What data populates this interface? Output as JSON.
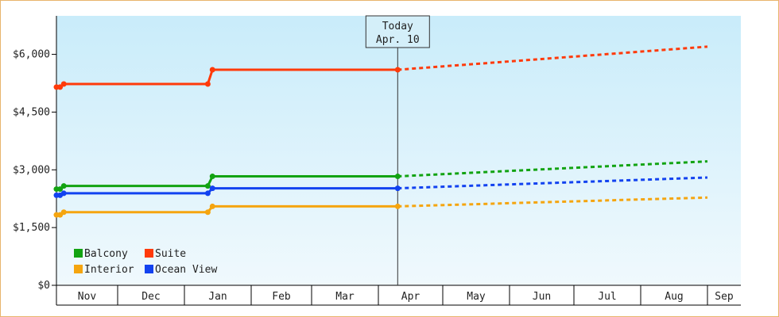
{
  "chart_data": {
    "type": "line",
    "x_unit": "month",
    "x_axis_labels": [
      "Nov",
      "Dec",
      "Jan",
      "Feb",
      "Mar",
      "Apr",
      "May",
      "Jun",
      "Jul",
      "Aug",
      "Sep"
    ],
    "y_ticks": [
      "$0",
      "$1,500",
      "$3,000",
      "$4,500",
      "$6,000"
    ],
    "ylim": [
      0,
      7000
    ],
    "grid": false,
    "legend_placement": "bottom-left",
    "today": {
      "line1": "Today",
      "line2": "Apr. 10"
    },
    "series": [
      {
        "name": "Balcony",
        "color": "#12a312",
        "history": [
          [
            0.0,
            2500
          ],
          [
            0.06,
            2500
          ],
          [
            0.12,
            2580
          ],
          [
            2.35,
            2580
          ],
          [
            2.42,
            2830
          ],
          [
            5.3,
            2830
          ]
        ],
        "forecast": [
          [
            5.3,
            2830
          ],
          [
            10.0,
            3220
          ]
        ]
      },
      {
        "name": "Suite",
        "color": "#ff3a0a",
        "history": [
          [
            0.0,
            5150
          ],
          [
            0.06,
            5150
          ],
          [
            0.12,
            5230
          ],
          [
            2.35,
            5230
          ],
          [
            2.42,
            5600
          ],
          [
            5.3,
            5600
          ]
        ],
        "forecast": [
          [
            5.3,
            5600
          ],
          [
            10.0,
            6200
          ]
        ]
      },
      {
        "name": "Interior",
        "color": "#f5a50f",
        "history": [
          [
            0.0,
            1830
          ],
          [
            0.06,
            1830
          ],
          [
            0.12,
            1900
          ],
          [
            2.35,
            1900
          ],
          [
            2.42,
            2050
          ],
          [
            5.3,
            2050
          ]
        ],
        "forecast": [
          [
            5.3,
            2050
          ],
          [
            10.0,
            2280
          ]
        ]
      },
      {
        "name": "Ocean View",
        "color": "#1242f0",
        "history": [
          [
            0.0,
            2340
          ],
          [
            0.06,
            2340
          ],
          [
            0.12,
            2390
          ],
          [
            2.35,
            2390
          ],
          [
            2.42,
            2520
          ],
          [
            5.3,
            2520
          ]
        ],
        "forecast": [
          [
            5.3,
            2520
          ],
          [
            10.0,
            2800
          ]
        ]
      }
    ]
  }
}
